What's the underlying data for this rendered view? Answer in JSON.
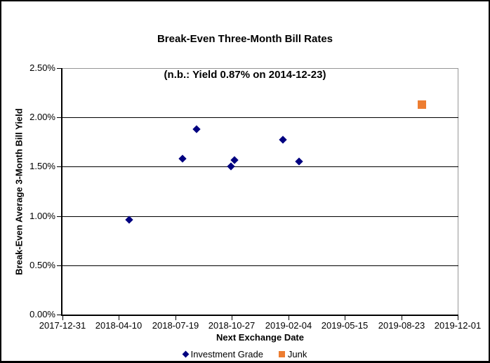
{
  "chart_data": {
    "type": "scatter",
    "title": "Break-Even Three-Month Bill Rates",
    "subtitle": "(n.b.: Yield 0.87% on 2014-12-23)",
    "xlabel": "Next Exchange Date",
    "ylabel": "Break-Even Average 3-Month Bill Yield",
    "x_min": "2017-12-31",
    "x_max": "2019-12-01",
    "x_ticks": [
      "2017-12-31",
      "2018-04-10",
      "2018-07-19",
      "2018-10-27",
      "2019-02-04",
      "2019-05-15",
      "2019-08-23",
      "2019-12-01"
    ],
    "y_min": 0,
    "y_max": 2.5,
    "y_ticks": [
      {
        "value": 0.0,
        "label": "0.00%"
      },
      {
        "value": 0.5,
        "label": "0.50%"
      },
      {
        "value": 1.0,
        "label": "1.00%"
      },
      {
        "value": 1.5,
        "label": "1.50%"
      },
      {
        "value": 2.0,
        "label": "2.00%"
      },
      {
        "value": 2.5,
        "label": "2.50%"
      }
    ],
    "grid": "horizontal-major",
    "legend_position": "bottom",
    "series": [
      {
        "name": "Investment Grade",
        "marker": "diamond",
        "color": "#000080",
        "points": [
          {
            "x": "2018-04-28",
            "y": 0.96
          },
          {
            "x": "2018-07-31",
            "y": 1.58
          },
          {
            "x": "2018-08-25",
            "y": 1.88
          },
          {
            "x": "2018-10-25",
            "y": 1.5
          },
          {
            "x": "2018-11-01",
            "y": 1.57
          },
          {
            "x": "2019-01-25",
            "y": 1.77
          },
          {
            "x": "2019-02-23",
            "y": 1.55
          }
        ]
      },
      {
        "name": "Junk",
        "marker": "square",
        "color": "#ED7D31",
        "points": [
          {
            "x": "2019-09-28",
            "y": 2.13
          }
        ]
      }
    ]
  },
  "colors": {
    "investment_grade": "#000080",
    "junk": "#ED7D31",
    "gridline": "#000000",
    "plot_border": "#969696",
    "background": "#FFFFFF"
  }
}
